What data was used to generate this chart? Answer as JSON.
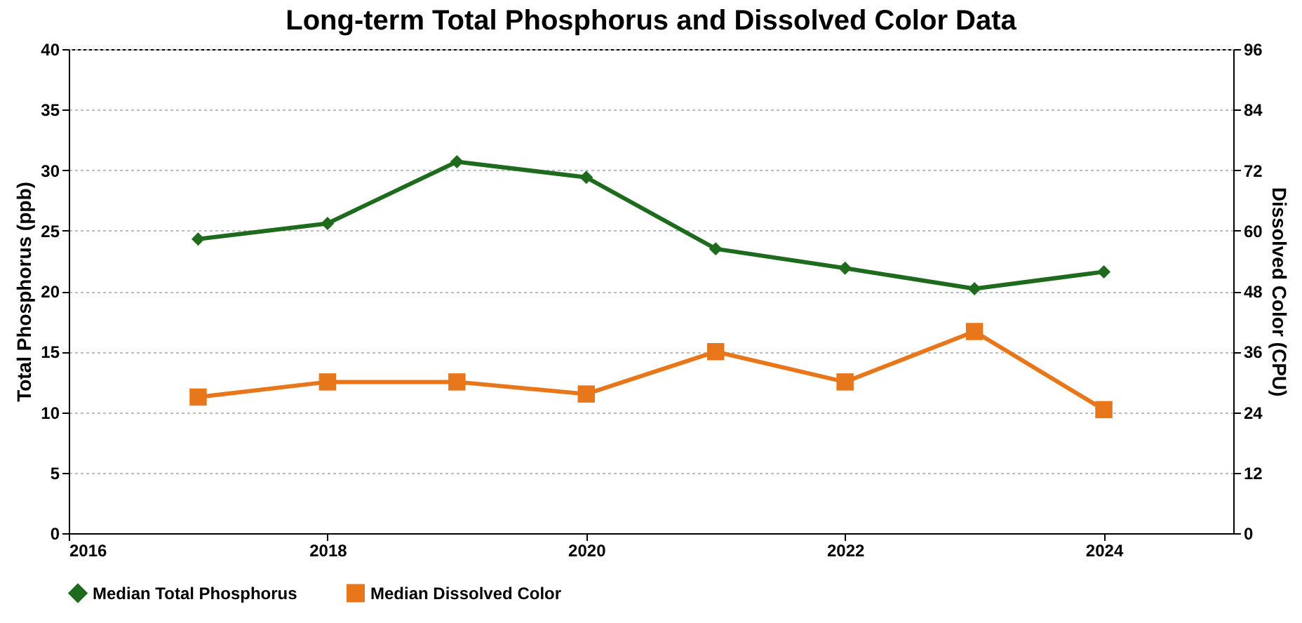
{
  "chart_data": {
    "type": "line",
    "title": "Long-term Total Phosphorus and Dissolved Color Data",
    "x": [
      2017,
      2018,
      2019,
      2020,
      2021,
      2022,
      2023,
      2024
    ],
    "series": [
      {
        "name": "Median Total Phosphorus",
        "color": "#1e6b1e",
        "marker": "diamond",
        "values": [
          24.3,
          25.6,
          30.7,
          29.4,
          23.5,
          21.9,
          20.2,
          21.6
        ]
      },
      {
        "name": "Median Dissolved Color",
        "color": "#e8761a",
        "marker": "square",
        "axis": "y2",
        "values": [
          27,
          30,
          30,
          27.6,
          36,
          30,
          40,
          24.5
        ]
      }
    ],
    "ylabel": "Total Phosphorus (ppb)",
    "y2label": "Dissolved Color (CPU)",
    "xlim": [
      2016,
      2025
    ],
    "xticks": [
      2016,
      2018,
      2020,
      2022,
      2024
    ],
    "ylim": [
      0,
      40
    ],
    "yticks": [
      0,
      5,
      10,
      15,
      20,
      25,
      30,
      35,
      40
    ],
    "y2lim": [
      0,
      96
    ],
    "y2ticks": [
      0,
      12,
      24,
      36,
      48,
      60,
      72,
      84,
      96
    ],
    "grid": "y",
    "legend": "bottom",
    "line_style": "solid"
  }
}
